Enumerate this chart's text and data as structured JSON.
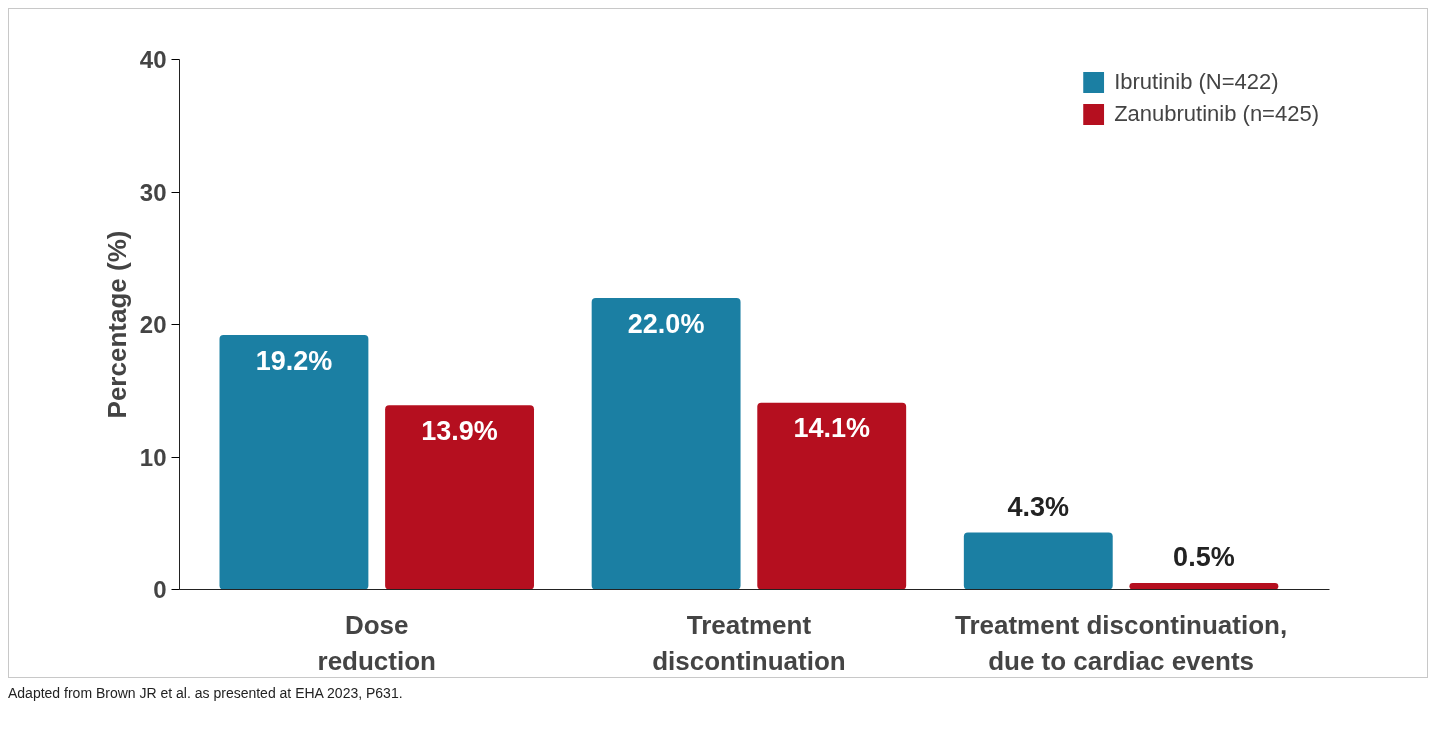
{
  "chart_data": {
    "type": "bar",
    "ylabel": "Percentage (%)",
    "categories": [
      "Dose\nreduction",
      "Treatment\ndiscontinuation",
      "Treatment discontinuation,\ndue to cardiac events"
    ],
    "series": [
      {
        "name": "Ibrutinib (N=422)",
        "color": "#1b7fa3",
        "values": [
          19.2,
          22.0,
          4.3
        ],
        "value_labels": [
          "19.2%",
          "22.0%",
          "4.3%"
        ]
      },
      {
        "name": "Zanubrutinib (n=425)",
        "color": "#b50f1f",
        "values": [
          13.9,
          14.1,
          0.5
        ],
        "value_labels": [
          "13.9%",
          "14.1%",
          "0.5%"
        ]
      }
    ],
    "ylim": [
      0,
      40
    ],
    "yticks": [
      0,
      10,
      20,
      30,
      40
    ],
    "grid": false,
    "legend": "top right",
    "annotations": [
      "Adapted from Brown JR et al. as presented at EHA 2023, P631."
    ]
  }
}
